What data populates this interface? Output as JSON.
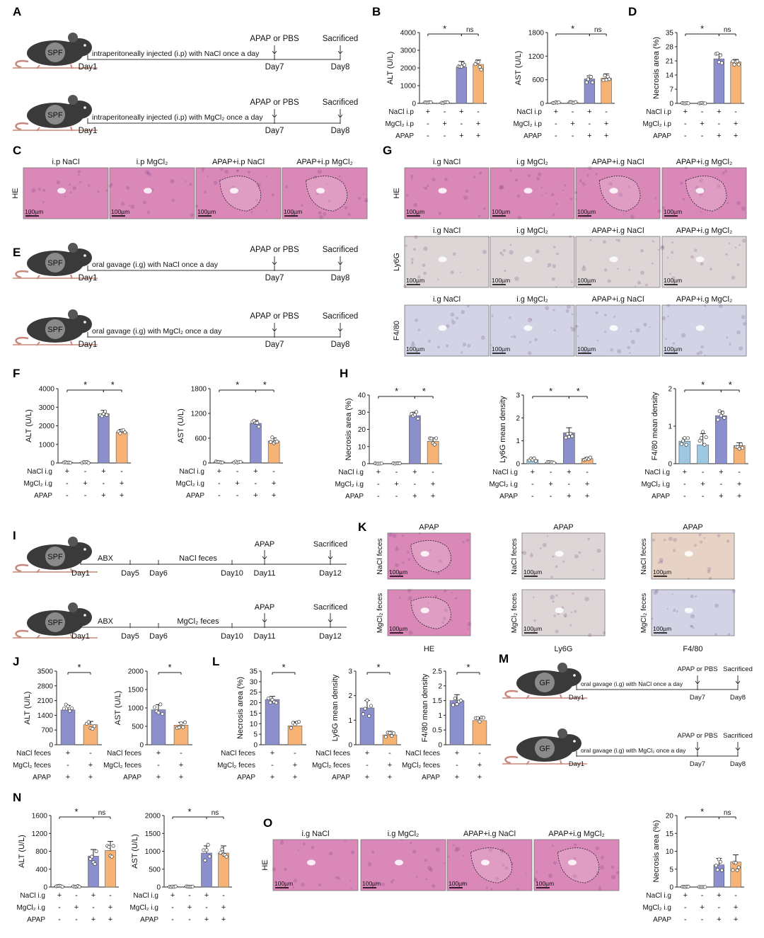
{
  "panel_letters": [
    "A",
    "B",
    "C",
    "D",
    "E",
    "F",
    "G",
    "H",
    "I",
    "J",
    "K",
    "L",
    "M",
    "N",
    "O"
  ],
  "colors": {
    "blue": "#8b8fcc",
    "orange": "#f7b375",
    "lightblue": "#9ec7e2",
    "he": "#d988b7",
    "ihc": "#ddd5d6",
    "f480": "#d3d3e6",
    "mouse": "#3a3a3a",
    "tail": "#c9897a"
  },
  "scale_bar": "100µm",
  "timelines": {
    "A1": {
      "label": "SPF",
      "text": "intraperitoneally injected (i.p) with NaCl once a day",
      "marks": [
        "Day1",
        "Day7",
        "Day8"
      ],
      "events": [
        "APAP or PBS",
        "Sacrificed"
      ]
    },
    "A2": {
      "label": "SPF",
      "text": "intraperitoneally injected (i.p) with MgCl₂ once a day",
      "marks": [
        "Day1",
        "Day7",
        "Day8"
      ],
      "events": [
        "APAP or PBS",
        "Sacrificed"
      ]
    },
    "E1": {
      "label": "SPF",
      "text": "oral gavage (i.g) with NaCl once a day",
      "marks": [
        "Day1",
        "Day7",
        "Day8"
      ],
      "events": [
        "APAP or PBS",
        "Sacrificed"
      ]
    },
    "E2": {
      "label": "SPF",
      "text": "oral gavage (i.g) with MgCl₂ once a day",
      "marks": [
        "Day1",
        "Day7",
        "Day8"
      ],
      "events": [
        "APAP or PBS",
        "Sacrificed"
      ]
    },
    "I1": {
      "label": "SPF",
      "segments": [
        "ABX",
        "NaCl feces"
      ],
      "marks": [
        "Day1",
        "Day5",
        "Day6",
        "Day10",
        "Day11",
        "Day12"
      ],
      "events": [
        "APAP",
        "Sacrificed"
      ]
    },
    "I2": {
      "label": "SPF",
      "segments": [
        "ABX",
        "MgCl₂ feces"
      ],
      "marks": [
        "Day1",
        "Day5",
        "Day6",
        "Day10",
        "Day11",
        "Day12"
      ],
      "events": [
        "APAP",
        "Sacrificed"
      ]
    },
    "M1": {
      "label": "GF",
      "text": "oral gavage (i.g) with NaCl once a day",
      "marks": [
        "Day1",
        "Day7",
        "Day8"
      ],
      "events": [
        "APAP or PBS",
        "Sacrificed"
      ]
    },
    "M2": {
      "label": "GF",
      "text": "oral gavage (i.g) with MgCl₂ once a day",
      "marks": [
        "Day1",
        "Day7",
        "Day8"
      ],
      "events": [
        "APAP or PBS",
        "Sacrificed"
      ]
    }
  },
  "image_panels": {
    "C": {
      "row": "HE",
      "titles": [
        "i.p NaCl",
        "i.p MgCl₂",
        "APAP+i.p NaCl",
        "APAP+i.p MgCl₂"
      ]
    },
    "G": {
      "rows": [
        "HE",
        "Ly6G",
        "F4/80"
      ],
      "titles": [
        "i.g NaCl",
        "i.g MgCl₂",
        "APAP+i.g NaCl",
        "APAP+i.g MgCl₂"
      ]
    },
    "K": {
      "title": "APAP",
      "rows": [
        "NaCl feces",
        "MgCl₂ feces"
      ],
      "columns": [
        "HE",
        "Ly6G",
        "F4/80"
      ]
    },
    "O": {
      "row": "HE",
      "titles": [
        "i.g NaCl",
        "i.g MgCl₂",
        "APAP+i.g NaCl",
        "APAP+i.g MgCl₂"
      ]
    }
  },
  "chart_data": [
    {
      "id": "B-ALT",
      "type": "bar",
      "ylabel": "ALT (U/L)",
      "ylim": [
        0,
        4000
      ],
      "yticks": [
        0,
        1000,
        2000,
        3000,
        4000
      ],
      "values": [
        40,
        40,
        2050,
        2200
      ],
      "errors": [
        10,
        10,
        320,
        250
      ],
      "groups": [
        {
          "name": "NaCl i.p",
          "signs": [
            "+",
            "-",
            "+",
            "-"
          ]
        },
        {
          "name": "MgCl₂ i.p",
          "signs": [
            "-",
            "+",
            "-",
            "+"
          ]
        },
        {
          "name": "APAP",
          "signs": [
            "-",
            "-",
            "+",
            "+"
          ]
        }
      ],
      "sig": [
        {
          "from": 0,
          "to": 2,
          "label": "*"
        },
        {
          "from": 2,
          "to": 3,
          "label": "ns"
        }
      ]
    },
    {
      "id": "B-AST",
      "type": "bar",
      "ylabel": "AST (U/L)",
      "ylim": [
        0,
        1800
      ],
      "yticks": [
        0,
        600,
        1200,
        1800
      ],
      "values": [
        20,
        25,
        620,
        640
      ],
      "errors": [
        5,
        5,
        80,
        110
      ],
      "groups": [
        {
          "name": "NaCl i.p",
          "signs": [
            "+",
            "-",
            "+",
            "-"
          ]
        },
        {
          "name": "MgCl₂ i.p",
          "signs": [
            "-",
            "+",
            "-",
            "+"
          ]
        },
        {
          "name": "APAP",
          "signs": [
            "-",
            "-",
            "+",
            "+"
          ]
        }
      ],
      "sig": [
        {
          "from": 0,
          "to": 2,
          "label": "*"
        },
        {
          "from": 2,
          "to": 3,
          "label": "ns"
        }
      ]
    },
    {
      "id": "D",
      "type": "bar",
      "ylabel": "Necrosis area (%)",
      "ylim": [
        0,
        35
      ],
      "yticks": [
        0,
        7,
        14,
        21,
        28,
        35
      ],
      "values": [
        0,
        0,
        22,
        20.5
      ],
      "errors": [
        0,
        0,
        2.5,
        1.2
      ],
      "groups": [
        {
          "name": "NaCl i.p",
          "signs": [
            "+",
            "-",
            "+",
            "-"
          ]
        },
        {
          "name": "MgCl₂ i.p",
          "signs": [
            "-",
            "+",
            "-",
            "+"
          ]
        },
        {
          "name": "APAP",
          "signs": [
            "-",
            "-",
            "+",
            "+"
          ]
        }
      ],
      "sig": [
        {
          "from": 0,
          "to": 2,
          "label": "*"
        },
        {
          "from": 2,
          "to": 3,
          "label": "ns"
        }
      ]
    },
    {
      "id": "F-ALT",
      "type": "bar",
      "ylabel": "ALT (U/L)",
      "ylim": [
        0,
        4000
      ],
      "yticks": [
        0,
        1000,
        2000,
        3000,
        4000
      ],
      "values": [
        30,
        30,
        2650,
        1650
      ],
      "errors": [
        5,
        5,
        180,
        160
      ],
      "groups": [
        {
          "name": "NaCl i.g",
          "signs": [
            "+",
            "-",
            "+",
            "-"
          ]
        },
        {
          "name": "MgCl₂ i.g",
          "signs": [
            "-",
            "+",
            "-",
            "+"
          ]
        },
        {
          "name": "APAP",
          "signs": [
            "-",
            "-",
            "+",
            "+"
          ]
        }
      ],
      "sig": [
        {
          "from": 0,
          "to": 2,
          "label": "*"
        },
        {
          "from": 2,
          "to": 3,
          "label": "*"
        }
      ]
    },
    {
      "id": "F-AST",
      "type": "bar",
      "ylabel": "AST (U/L)",
      "ylim": [
        0,
        1800
      ],
      "yticks": [
        0,
        600,
        1200,
        1800
      ],
      "values": [
        25,
        25,
        960,
        530
      ],
      "errors": [
        5,
        5,
        70,
        75
      ],
      "groups": [
        {
          "name": "NaCl i.g",
          "signs": [
            "+",
            "-",
            "+",
            "-"
          ]
        },
        {
          "name": "MgCl₂ i.g",
          "signs": [
            "-",
            "+",
            "-",
            "+"
          ]
        },
        {
          "name": "APAP",
          "signs": [
            "-",
            "-",
            "+",
            "+"
          ]
        }
      ],
      "sig": [
        {
          "from": 0,
          "to": 2,
          "label": "*"
        },
        {
          "from": 2,
          "to": 3,
          "label": "*"
        }
      ]
    },
    {
      "id": "H-Nec",
      "type": "bar",
      "ylabel": "Necrosis area (%)",
      "ylim": [
        0,
        40
      ],
      "yticks": [
        0,
        10,
        20,
        30,
        40
      ],
      "values": [
        0,
        0,
        28,
        13
      ],
      "errors": [
        0,
        0,
        2,
        2
      ],
      "groups": [
        {
          "name": "NaCl i.g",
          "signs": [
            "+",
            "-",
            "+",
            "-"
          ]
        },
        {
          "name": "MgCl₂ i.g",
          "signs": [
            "-",
            "+",
            "-",
            "+"
          ]
        },
        {
          "name": "APAP",
          "signs": [
            "-",
            "-",
            "+",
            "+"
          ]
        }
      ],
      "sig": [
        {
          "from": 0,
          "to": 2,
          "label": "*"
        },
        {
          "from": 2,
          "to": 3,
          "label": "*"
        }
      ]
    },
    {
      "id": "H-Ly6G",
      "type": "bar",
      "ylabel": "Ly6G mean density",
      "ylim": [
        0,
        3
      ],
      "yticks": [
        0,
        1,
        2,
        3
      ],
      "values": [
        0.18,
        0.05,
        1.35,
        0.22
      ],
      "errors": [
        0.08,
        0.02,
        0.22,
        0.05
      ],
      "groups": [
        {
          "name": "NaCl i.g",
          "signs": [
            "+",
            "-",
            "+",
            "-"
          ]
        },
        {
          "name": "MgCl₂ i.g",
          "signs": [
            "-",
            "+",
            "-",
            "+"
          ]
        },
        {
          "name": "APAP",
          "signs": [
            "-",
            "-",
            "+",
            "+"
          ]
        }
      ],
      "sig": [
        {
          "from": 0,
          "to": 2,
          "label": "*"
        },
        {
          "from": 2,
          "to": 3,
          "label": "*"
        }
      ],
      "lightfirst": true
    },
    {
      "id": "H-F480",
      "type": "bar",
      "ylabel": "F4/80 mean density",
      "ylim": [
        0,
        2
      ],
      "yticks": [
        0,
        1,
        2
      ],
      "values": [
        0.6,
        0.5,
        1.28,
        0.48
      ],
      "errors": [
        0.08,
        0.3,
        0.12,
        0.08
      ],
      "groups": [
        {
          "name": "NaCl i.g",
          "signs": [
            "+",
            "-",
            "+",
            "-"
          ]
        },
        {
          "name": "MgCl₂ i.g",
          "signs": [
            "-",
            "+",
            "-",
            "+"
          ]
        },
        {
          "name": "APAP",
          "signs": [
            "-",
            "-",
            "+",
            "+"
          ]
        }
      ],
      "sig": [
        {
          "from": 0,
          "to": 2,
          "label": "*"
        },
        {
          "from": 2,
          "to": 3,
          "label": "*"
        }
      ],
      "lightfirst": true
    },
    {
      "id": "J-ALT",
      "type": "bar",
      "ylabel": "ALT (U/L)",
      "ylim": [
        0,
        3500
      ],
      "yticks": [
        0,
        700,
        1400,
        2100,
        2800,
        3500
      ],
      "values": [
        1650,
        950
      ],
      "errors": [
        220,
        160
      ],
      "groups": [
        {
          "name": "NaCl feces",
          "signs": [
            "+",
            "-"
          ]
        },
        {
          "name": "MgCl₂ feces",
          "signs": [
            "-",
            "+"
          ]
        },
        {
          "name": "APAP",
          "signs": [
            "+",
            "+"
          ]
        }
      ],
      "sig": [
        {
          "from": 0,
          "to": 1,
          "label": "*"
        }
      ]
    },
    {
      "id": "J-AST",
      "type": "bar",
      "ylabel": "AST (U/L)",
      "ylim": [
        0,
        2000
      ],
      "yticks": [
        0,
        500,
        1000,
        1500,
        2000
      ],
      "values": [
        950,
        530
      ],
      "errors": [
        140,
        80
      ],
      "groups": [
        {
          "name": "NaCl feces",
          "signs": [
            "+",
            "-"
          ]
        },
        {
          "name": "MgCl₂ feces",
          "signs": [
            "-",
            "+"
          ]
        },
        {
          "name": "APAP",
          "signs": [
            "+",
            "+"
          ]
        }
      ],
      "sig": [
        {
          "from": 0,
          "to": 1,
          "label": "*"
        }
      ]
    },
    {
      "id": "L-Nec",
      "type": "bar",
      "ylabel": "Necrosis area (%)",
      "ylim": [
        0,
        35
      ],
      "yticks": [
        0,
        5,
        10,
        15,
        20,
        25,
        30,
        35
      ],
      "values": [
        21.5,
        9
      ],
      "errors": [
        1.5,
        2
      ],
      "groups": [
        {
          "name": "NaCl feces",
          "signs": [
            "+",
            "-"
          ]
        },
        {
          "name": "MgCl₂ feces",
          "signs": [
            "-",
            "+"
          ]
        },
        {
          "name": "APAP",
          "signs": [
            "+",
            "+"
          ]
        }
      ],
      "sig": [
        {
          "from": 0,
          "to": 1,
          "label": "*"
        }
      ]
    },
    {
      "id": "L-Ly6G",
      "type": "bar",
      "ylabel": "Ly6G mean density",
      "ylim": [
        0,
        3
      ],
      "yticks": [
        0,
        1,
        2,
        3
      ],
      "values": [
        1.5,
        0.4
      ],
      "errors": [
        0.3,
        0.15
      ],
      "groups": [
        {
          "name": "NaCl feces",
          "signs": [
            "+",
            "-"
          ]
        },
        {
          "name": "MgCl₂ feces",
          "signs": [
            "-",
            "+"
          ]
        },
        {
          "name": "APAP",
          "signs": [
            "+",
            "+"
          ]
        }
      ],
      "sig": [
        {
          "from": 0,
          "to": 1,
          "label": "*"
        }
      ]
    },
    {
      "id": "L-F480",
      "type": "bar",
      "ylabel": "F4/80 mean density",
      "ylim": [
        0,
        2.5
      ],
      "yticks": [
        0,
        0.5,
        1,
        1.5,
        2,
        2.5
      ],
      "values": [
        1.5,
        0.82
      ],
      "errors": [
        0.2,
        0.1
      ],
      "groups": [
        {
          "name": "NaCl feces",
          "signs": [
            "+",
            "-"
          ]
        },
        {
          "name": "MgCl₂ feces",
          "signs": [
            "-",
            "+"
          ]
        },
        {
          "name": "APAP",
          "signs": [
            "+",
            "+"
          ]
        }
      ],
      "sig": [
        {
          "from": 0,
          "to": 1,
          "label": "*"
        }
      ]
    },
    {
      "id": "N-ALT",
      "type": "bar",
      "ylabel": "ALT (U/L)",
      "ylim": [
        0,
        1600
      ],
      "yticks": [
        0,
        400,
        800,
        1200,
        1600
      ],
      "values": [
        15,
        15,
        690,
        820
      ],
      "errors": [
        3,
        3,
        150,
        200
      ],
      "groups": [
        {
          "name": "NaCl i.g",
          "signs": [
            "+",
            "-",
            "+",
            "-"
          ]
        },
        {
          "name": "MgCl₂ i.g",
          "signs": [
            "-",
            "+",
            "-",
            "+"
          ]
        },
        {
          "name": "APAP",
          "signs": [
            "-",
            "-",
            "+",
            "+"
          ]
        }
      ],
      "sig": [
        {
          "from": 0,
          "to": 2,
          "label": "*"
        },
        {
          "from": 2,
          "to": 3,
          "label": "ns"
        }
      ]
    },
    {
      "id": "N-AST",
      "type": "bar",
      "ylabel": "AST (U/L)",
      "ylim": [
        0,
        2000
      ],
      "yticks": [
        0,
        500,
        1000,
        1500,
        2000
      ],
      "values": [
        15,
        15,
        950,
        950
      ],
      "errors": [
        3,
        3,
        200,
        200
      ],
      "groups": [
        {
          "name": "NaCl i.g",
          "signs": [
            "+",
            "-",
            "+",
            "-"
          ]
        },
        {
          "name": "MgCl₂ i.g",
          "signs": [
            "-",
            "+",
            "-",
            "+"
          ]
        },
        {
          "name": "APAP",
          "signs": [
            "-",
            "-",
            "+",
            "+"
          ]
        }
      ],
      "sig": [
        {
          "from": 0,
          "to": 2,
          "label": "*"
        },
        {
          "from": 2,
          "to": 3,
          "label": "ns"
        }
      ]
    },
    {
      "id": "O-Nec",
      "type": "bar",
      "ylabel": "Necrosis area (%)",
      "ylim": [
        0,
        20
      ],
      "yticks": [
        0,
        5,
        10,
        15,
        20
      ],
      "values": [
        0,
        0,
        6.2,
        7
      ],
      "errors": [
        0,
        0,
        1.8,
        2
      ],
      "groups": [
        {
          "name": "NaCl i.g",
          "signs": [
            "+",
            "-",
            "+",
            "-"
          ]
        },
        {
          "name": "MgCl₂ i.g",
          "signs": [
            "-",
            "+",
            "-",
            "+"
          ]
        },
        {
          "name": "APAP",
          "signs": [
            "-",
            "-",
            "+",
            "+"
          ]
        }
      ],
      "sig": [
        {
          "from": 0,
          "to": 2,
          "label": "*"
        },
        {
          "from": 2,
          "to": 3,
          "label": "ns"
        }
      ]
    }
  ]
}
